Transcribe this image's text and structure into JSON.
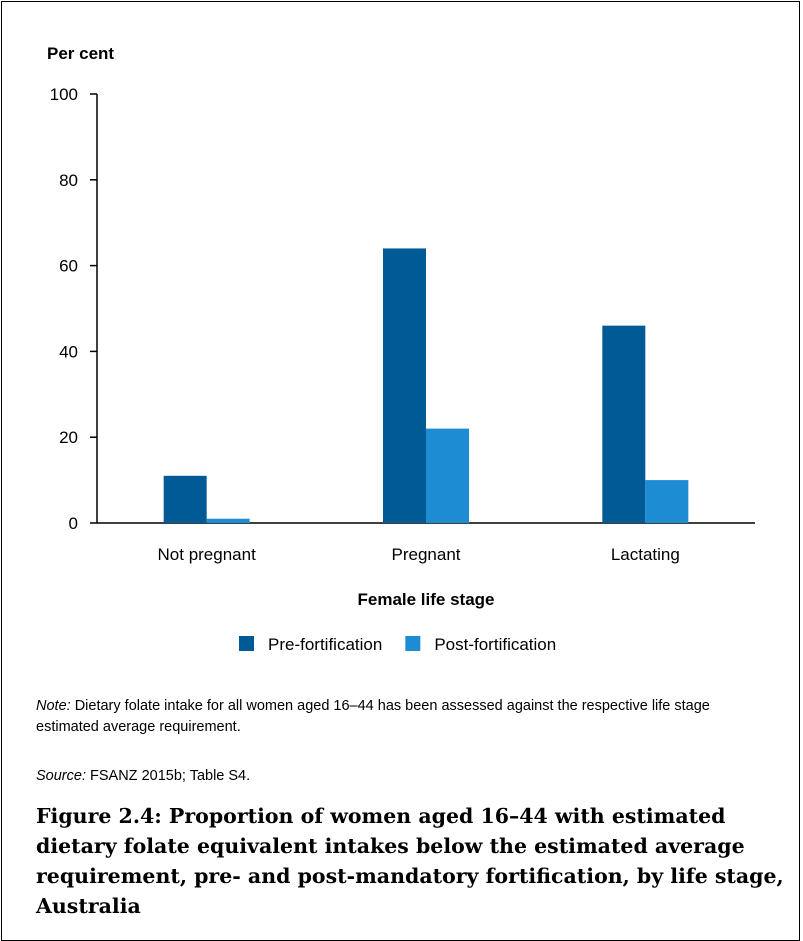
{
  "chart_data": {
    "type": "bar",
    "ylabel": "Per cent",
    "xlabel": "Female life stage",
    "ylim": [
      0,
      100
    ],
    "yticks": [
      0,
      20,
      40,
      60,
      80,
      100
    ],
    "categories": [
      "Not pregnant",
      "Pregnant",
      "Lactating"
    ],
    "series": [
      {
        "name": "Pre-fortification",
        "values": [
          11,
          64,
          46
        ],
        "color": "#005a96"
      },
      {
        "name": "Post-fortification",
        "values": [
          1,
          22,
          10
        ],
        "color": "#1e8cd2"
      }
    ],
    "legend": "bottom",
    "grid": false
  },
  "note": {
    "label": "Note:",
    "text": "Dietary folate intake for all women aged 16–44 has been assessed against the respective life stage estimated average requirement."
  },
  "source": {
    "label": "Source:",
    "text": "FSANZ 2015b; Table S4."
  },
  "caption": "Figure 2.4: Proportion of women aged 16–44 with estimated dietary folate equivalent intakes below the estimated average requirement, pre- and post-mandatory fortification, by life stage, Australia"
}
